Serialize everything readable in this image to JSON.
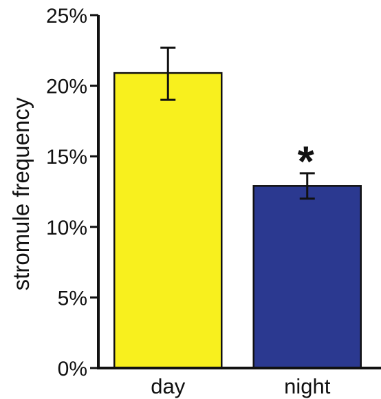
{
  "chart_data": {
    "type": "bar",
    "title": "",
    "xlabel": "",
    "ylabel": "stromule frequency",
    "ylim": [
      0,
      25
    ],
    "y_unit": "%",
    "yticks": [
      "0%",
      "5%",
      "10%",
      "15%",
      "20%",
      "25%"
    ],
    "ytick_values": [
      0,
      5,
      10,
      15,
      20,
      25
    ],
    "grid": false,
    "legend": "none",
    "categories": [
      "day",
      "night"
    ],
    "values": [
      20.9,
      12.9
    ],
    "errors": [
      [
        19.0,
        22.7
      ],
      [
        12.0,
        13.8
      ]
    ],
    "colors": [
      "#f8f01e",
      "#2b3990"
    ],
    "annotations": [
      {
        "category": "night",
        "text": "*"
      }
    ]
  }
}
